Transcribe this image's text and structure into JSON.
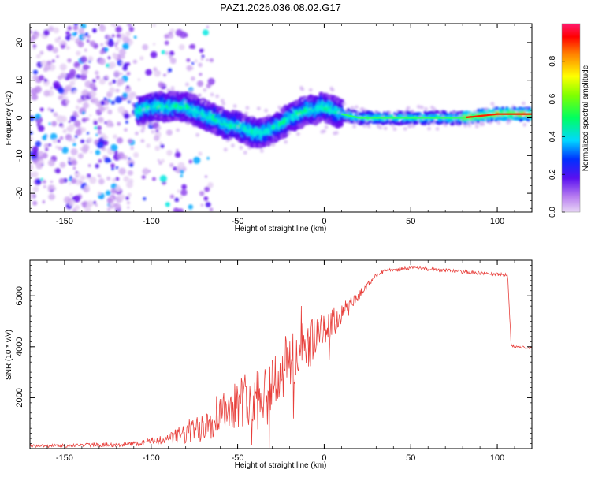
{
  "title": "PAZ1.2026.036.08.02.G17",
  "colors": {
    "snr_line": "#e8403c",
    "axis": "#000000"
  },
  "chart_data": [
    {
      "type": "heatmap",
      "xlabel": "Height of straight line (km)",
      "ylabel": "Frequency (Hz)",
      "xlim": [
        -170,
        120
      ],
      "ylim": [
        -25,
        25
      ],
      "x_ticks": [
        -150,
        -100,
        -50,
        0,
        50,
        100
      ],
      "y_ticks": [
        -20,
        -10,
        0,
        10,
        20
      ],
      "ridge": {
        "x": [
          -105,
          -100,
          -95,
          -90,
          -85,
          -80,
          -75,
          -70,
          -65,
          -60,
          -55,
          -50,
          -45,
          -40,
          -35,
          -30,
          -25,
          -20,
          -15,
          -10,
          -5,
          0,
          5,
          10,
          20,
          40,
          60,
          80,
          100,
          120
        ],
        "freq": [
          2,
          3,
          3,
          3,
          3,
          3,
          2,
          1,
          0,
          -1,
          -2,
          -2,
          -3,
          -4,
          -4,
          -3,
          -2,
          0,
          1,
          2,
          2,
          3,
          2,
          1,
          0,
          0,
          0,
          0,
          1,
          1
        ]
      },
      "colorbar": {
        "label": "Normalized spectral amplitude",
        "range": [
          0.0,
          1.0
        ],
        "ticks": [
          "0.0",
          "0.2",
          "0.4",
          "0.6",
          "0.8"
        ],
        "colormap": "hsv-like (violet to red)"
      }
    },
    {
      "type": "line",
      "xlabel": "Height of straight line (km)",
      "ylabel": "SNR (10 * v/v)",
      "xlim": [
        -170,
        120
      ],
      "ylim": [
        0,
        7400
      ],
      "x_ticks": [
        -150,
        -100,
        -50,
        0,
        50,
        100
      ],
      "y_ticks": [
        2000,
        4000,
        6000
      ],
      "series": [
        {
          "name": "SNR",
          "x": [
            -170,
            -150,
            -130,
            -110,
            -100,
            -90,
            -80,
            -75,
            -70,
            -65,
            -60,
            -55,
            -50,
            -45,
            -40,
            -35,
            -30,
            -25,
            -20,
            -15,
            -10,
            -5,
            0,
            5,
            10,
            15,
            20,
            25,
            30,
            35,
            40,
            50,
            60,
            70,
            80,
            90,
            100,
            106,
            108,
            110,
            120
          ],
          "y": [
            100,
            120,
            150,
            180,
            300,
            400,
            600,
            700,
            1000,
            1200,
            1500,
            1700,
            1800,
            2000,
            2100,
            2300,
            2600,
            3000,
            3400,
            3700,
            4000,
            4300,
            4600,
            4900,
            5300,
            5600,
            6000,
            6400,
            6800,
            7000,
            7000,
            7100,
            7050,
            7000,
            6950,
            6900,
            6850,
            6800,
            4050,
            4000,
            3950
          ],
          "noise": [
            60,
            70,
            80,
            100,
            150,
            200,
            450,
            600,
            700,
            800,
            900,
            900,
            1000,
            1100,
            1100,
            1200,
            1200,
            1300,
            1300,
            1200,
            1000,
            900,
            700,
            600,
            500,
            350,
            250,
            150,
            100,
            80,
            70,
            70,
            70,
            70,
            70,
            70,
            70,
            70,
            60,
            50,
            50
          ]
        }
      ]
    }
  ]
}
